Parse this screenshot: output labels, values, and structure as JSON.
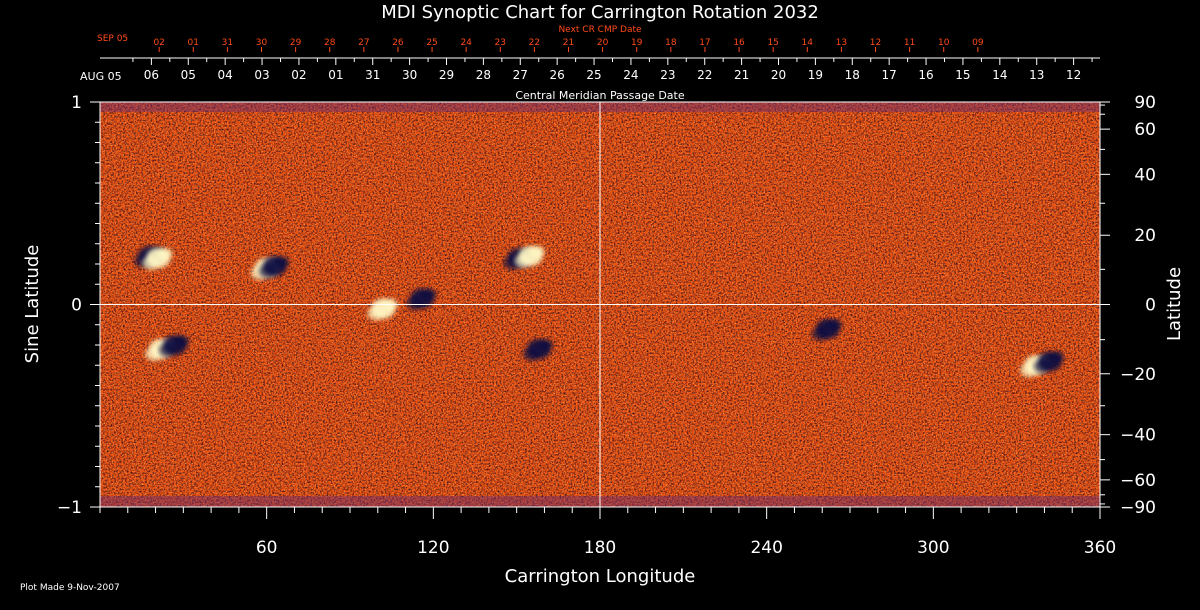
{
  "chart_data": {
    "type": "heatmap",
    "title": "MDI Synoptic Chart for Carrington Rotation 2032",
    "xlabel": "Carrington Longitude",
    "ylabel": "Sine Latitude",
    "ylabel_right": "Latitude",
    "xlim": [
      0,
      360
    ],
    "ylim": [
      -1,
      1
    ],
    "x_ticks": [
      60,
      120,
      180,
      240,
      300,
      360
    ],
    "y_ticks": [
      {
        "v": 1,
        "label": "1"
      },
      {
        "v": 0,
        "label": "0"
      },
      {
        "v": -1,
        "label": "−1"
      }
    ],
    "lat_ticks": [
      {
        "deg": 90,
        "label": "90"
      },
      {
        "deg": 60,
        "label": "60"
      },
      {
        "deg": 40,
        "label": "40"
      },
      {
        "deg": 20,
        "label": "20"
      },
      {
        "deg": 0,
        "label": "0"
      },
      {
        "deg": -20,
        "label": "−20"
      },
      {
        "deg": -40,
        "label": "−40"
      },
      {
        "deg": -60,
        "label": "−60"
      },
      {
        "deg": -90,
        "label": "−90"
      }
    ],
    "grid_lines": {
      "longitude": 180,
      "sine_latitude": 0
    },
    "cmp_axis": {
      "title": "Central Meridian Passage Date",
      "month_label": "AUG 05",
      "days": [
        "06",
        "05",
        "04",
        "03",
        "02",
        "01",
        "31",
        "30",
        "29",
        "28",
        "27",
        "26",
        "25",
        "24",
        "23",
        "22",
        "21",
        "20",
        "19",
        "18",
        "17",
        "16",
        "15",
        "14",
        "13",
        "12"
      ],
      "start_longitude": 18.5,
      "step": 13.28
    },
    "next_cr_axis": {
      "title": "Next CR CMP Date",
      "month_label": "SEP 05",
      "days": [
        "02",
        "01",
        "31",
        "30",
        "29",
        "28",
        "27",
        "26",
        "25",
        "24",
        "23",
        "22",
        "21",
        "20",
        "19",
        "18",
        "17",
        "16",
        "15",
        "14",
        "13",
        "12",
        "11",
        "10",
        "09"
      ],
      "start_longitude": 21.3,
      "step": 12.28
    },
    "active_regions": [
      {
        "lon": 18,
        "sinlat": 0.24,
        "polarity": "negative"
      },
      {
        "lon": 21,
        "sinlat": 0.23,
        "polarity": "positive"
      },
      {
        "lon": 60,
        "sinlat": 0.18,
        "polarity": "positive"
      },
      {
        "lon": 63,
        "sinlat": 0.19,
        "polarity": "negative"
      },
      {
        "lon": 22,
        "sinlat": -0.22,
        "polarity": "positive"
      },
      {
        "lon": 27,
        "sinlat": -0.2,
        "polarity": "negative"
      },
      {
        "lon": 102,
        "sinlat": -0.02,
        "polarity": "positive"
      },
      {
        "lon": 116,
        "sinlat": 0.03,
        "polarity": "negative"
      },
      {
        "lon": 151,
        "sinlat": 0.23,
        "polarity": "negative"
      },
      {
        "lon": 155,
        "sinlat": 0.24,
        "polarity": "positive"
      },
      {
        "lon": 158,
        "sinlat": -0.22,
        "polarity": "negative"
      },
      {
        "lon": 262,
        "sinlat": -0.12,
        "polarity": "negative"
      },
      {
        "lon": 337,
        "sinlat": -0.3,
        "polarity": "positive"
      },
      {
        "lon": 342,
        "sinlat": -0.28,
        "polarity": "negative"
      }
    ]
  },
  "footer": {
    "plot_made": "Plot Made  9-Nov-2007"
  },
  "colors": {
    "background": "#000000",
    "map_base": "#e23a0a",
    "positive": "#fff7c4",
    "negative": "#0d0c40",
    "orange_text": "#ff4a1a"
  }
}
